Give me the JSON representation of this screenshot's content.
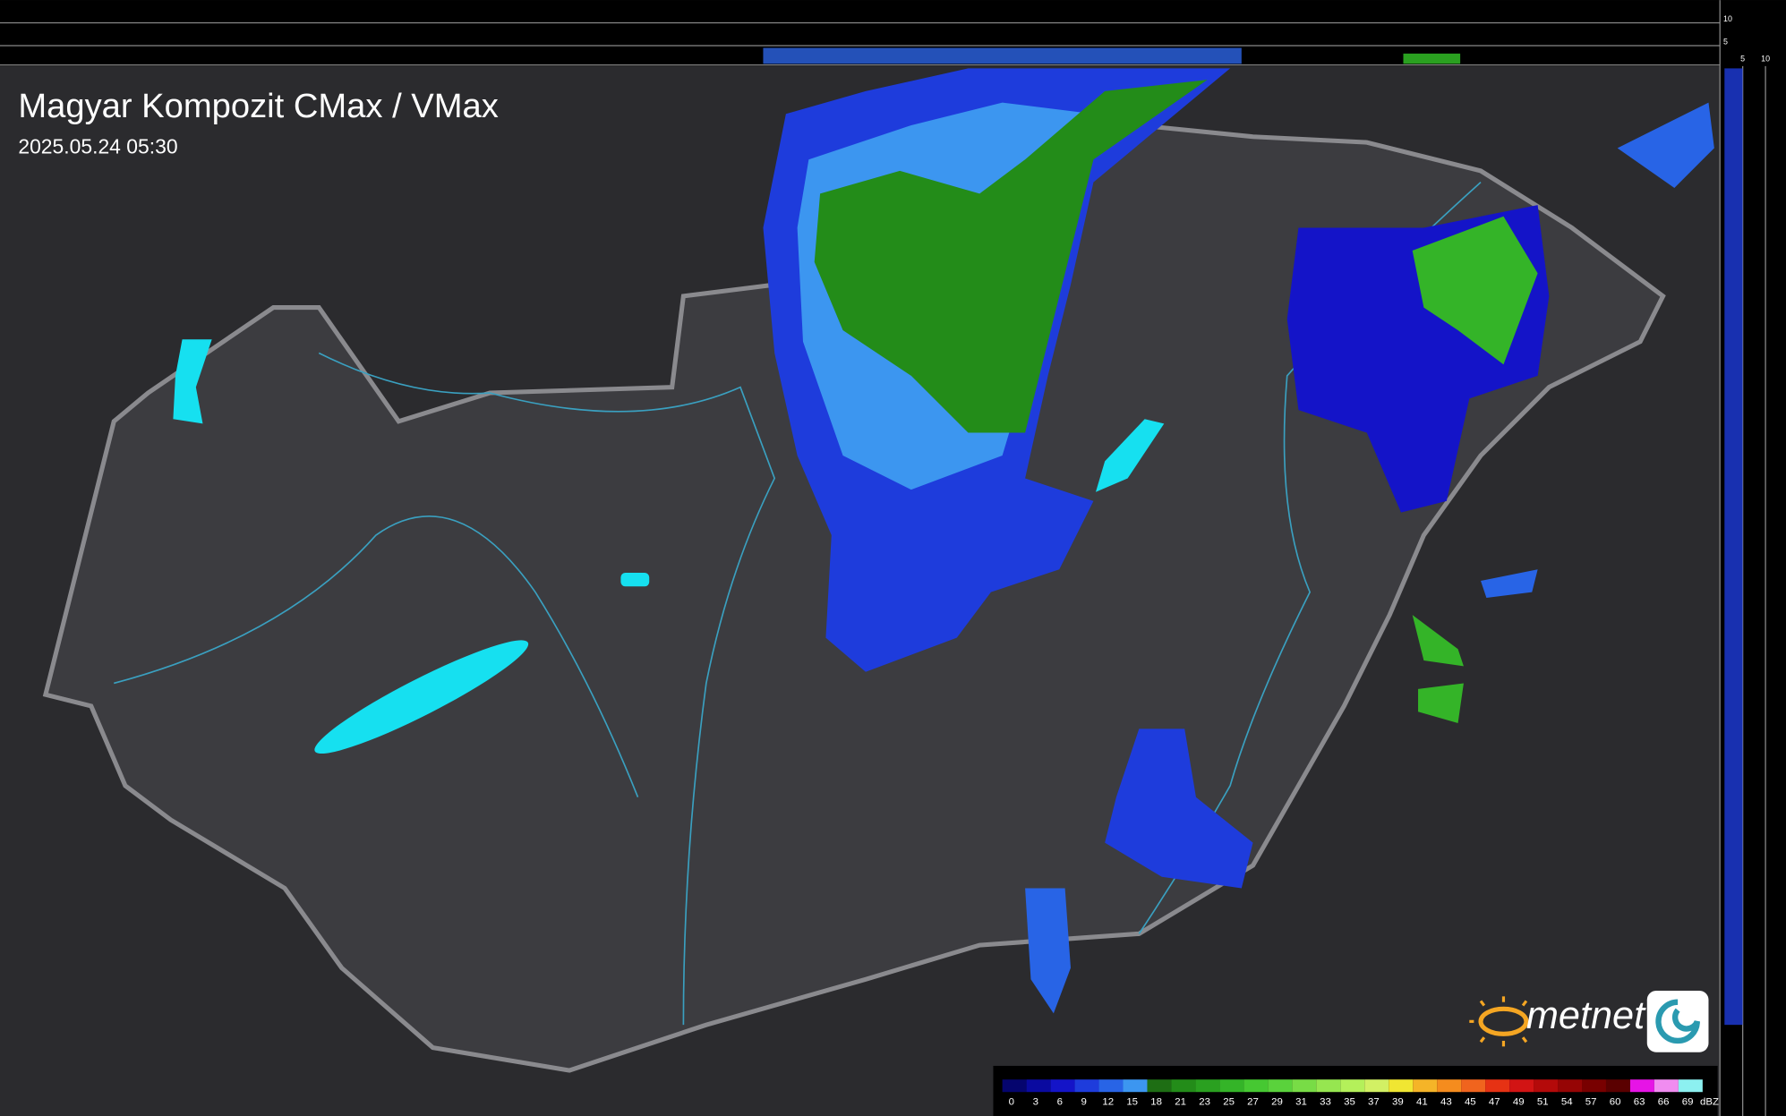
{
  "header": {
    "title": "Magyar Kompozit CMax / VMax",
    "timestamp": "2025.05.24 05:30"
  },
  "side_axis": {
    "top_ticks": [
      "10",
      "5"
    ],
    "right_ticks": [
      "5",
      "10"
    ]
  },
  "logo": {
    "text": "metnet"
  },
  "legend": {
    "unit": "dBZ",
    "values": [
      0,
      3,
      6,
      9,
      12,
      15,
      18,
      21,
      23,
      25,
      27,
      29,
      31,
      33,
      35,
      37,
      39,
      41,
      43,
      45,
      47,
      49,
      51,
      54,
      57,
      60,
      63,
      66,
      69
    ],
    "colors": [
      "#05056e",
      "#0a0aa0",
      "#1414c8",
      "#1e3cdc",
      "#2864e6",
      "#3c96f0",
      "#1e6e14",
      "#238c19",
      "#2aa020",
      "#34b428",
      "#46c832",
      "#5ad23c",
      "#78dc46",
      "#96e650",
      "#b4f05a",
      "#d2f064",
      "#f0e632",
      "#f5b428",
      "#f58c1e",
      "#f0641e",
      "#e63214",
      "#d21414",
      "#b40a0a",
      "#960505",
      "#780000",
      "#5a0000",
      "#e614e6",
      "#f08cf0",
      "#8cf0f0"
    ]
  }
}
